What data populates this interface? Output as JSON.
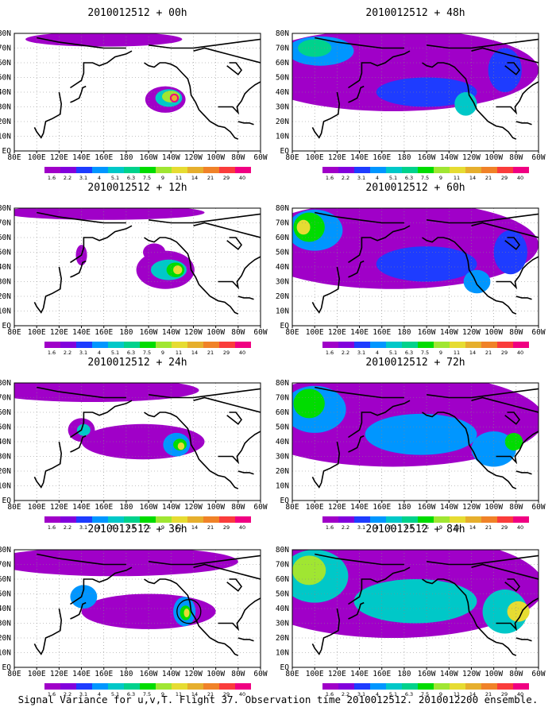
{
  "figure": {
    "caption": "Signal Variance for u,v,T. Flight 37. Observation time 2010012512. 2010012200 ensemble."
  },
  "chart_data": {
    "type": "heatmap",
    "x_ticks": [
      "80E",
      "100E",
      "120E",
      "140E",
      "160E",
      "180",
      "160W",
      "140W",
      "120W",
      "100W",
      "80W",
      "60W"
    ],
    "y_ticks": [
      "EQ",
      "10N",
      "20N",
      "30N",
      "40N",
      "50N",
      "60N",
      "70N",
      "80N"
    ],
    "colorbar": {
      "labels": [
        "1.6",
        "2.2",
        "3.1",
        "4",
        "5.1",
        "6.3",
        "7.5",
        "9",
        "11",
        "14",
        "21",
        "29",
        "40"
      ],
      "colors": [
        "#a000c8",
        "#8200dc",
        "#1e3cff",
        "#0096ff",
        "#00c8c8",
        "#00d28c",
        "#00dc00",
        "#a0e632",
        "#e6dc32",
        "#e6af2d",
        "#f08228",
        "#fa3c3c",
        "#f00082"
      ]
    },
    "land_color": "#000000",
    "grid": "dotted",
    "panels": [
      {
        "title": "2010012512 + 00h",
        "blobs": [
          {
            "lon": 215,
            "lat": 35,
            "rx": 18,
            "ry": 9,
            "level": 0
          },
          {
            "lon": 218,
            "lat": 36,
            "rx": 12,
            "ry": 6,
            "level": 4
          },
          {
            "lon": 220,
            "lat": 37,
            "rx": 8,
            "ry": 4,
            "level": 7
          },
          {
            "lon": 223,
            "lat": 36,
            "rx": 4,
            "ry": 3,
            "level": 12
          },
          {
            "lon": 223,
            "lat": 36,
            "rx": 2.5,
            "ry": 2,
            "level": 9
          },
          {
            "lon": 160,
            "lat": 76,
            "rx": 70,
            "ry": 5,
            "level": 0
          }
        ]
      },
      {
        "title": "2010012512 + 12h",
        "blobs": [
          {
            "lon": 160,
            "lat": 77,
            "rx": 90,
            "ry": 5,
            "level": 0
          },
          {
            "lon": 215,
            "lat": 38,
            "rx": 26,
            "ry": 13,
            "level": 0
          },
          {
            "lon": 205,
            "lat": 50,
            "rx": 10,
            "ry": 6,
            "level": 0
          },
          {
            "lon": 218,
            "lat": 38,
            "rx": 16,
            "ry": 7,
            "level": 4
          },
          {
            "lon": 224,
            "lat": 38,
            "rx": 8,
            "ry": 5,
            "level": 6
          },
          {
            "lon": 226,
            "lat": 38,
            "rx": 4,
            "ry": 3,
            "level": 8
          },
          {
            "lon": 140,
            "lat": 48,
            "rx": 5,
            "ry": 7,
            "level": 0
          }
        ]
      },
      {
        "title": "2010012512 + 24h",
        "blobs": [
          {
            "lon": 150,
            "lat": 75,
            "rx": 95,
            "ry": 8,
            "level": 0
          },
          {
            "lon": 195,
            "lat": 40,
            "rx": 55,
            "ry": 12,
            "level": 0
          },
          {
            "lon": 140,
            "lat": 48,
            "rx": 12,
            "ry": 8,
            "level": 0
          },
          {
            "lon": 142,
            "lat": 48,
            "rx": 6,
            "ry": 4,
            "level": 4
          },
          {
            "lon": 225,
            "lat": 38,
            "rx": 12,
            "ry": 8,
            "level": 3
          },
          {
            "lon": 228,
            "lat": 38,
            "rx": 6,
            "ry": 4,
            "level": 6
          },
          {
            "lon": 229,
            "lat": 37,
            "rx": 3,
            "ry": 2.5,
            "level": 8
          }
        ]
      },
      {
        "title": "2010012512 + 36h",
        "blobs": [
          {
            "lon": 170,
            "lat": 72,
            "rx": 110,
            "ry": 10,
            "level": 0
          },
          {
            "lon": 200,
            "lat": 38,
            "rx": 60,
            "ry": 12,
            "level": 0
          },
          {
            "lon": 142,
            "lat": 48,
            "rx": 12,
            "ry": 8,
            "level": 3
          },
          {
            "lon": 232,
            "lat": 38,
            "rx": 10,
            "ry": 10,
            "level": 3
          },
          {
            "lon": 233,
            "lat": 37,
            "rx": 5,
            "ry": 5,
            "level": 6
          },
          {
            "lon": 234,
            "lat": 37,
            "rx": 2.5,
            "ry": 3,
            "level": 8
          }
        ]
      },
      {
        "title": "2010012512 + 48h",
        "blobs": [
          {
            "lon": 170,
            "lat": 55,
            "rx": 130,
            "ry": 28,
            "level": 0
          },
          {
            "lon": 105,
            "lat": 68,
            "rx": 30,
            "ry": 10,
            "level": 3
          },
          {
            "lon": 100,
            "lat": 70,
            "rx": 15,
            "ry": 6,
            "level": 5
          },
          {
            "lon": 200,
            "lat": 40,
            "rx": 45,
            "ry": 10,
            "level": 2
          },
          {
            "lon": 235,
            "lat": 32,
            "rx": 10,
            "ry": 8,
            "level": 4
          },
          {
            "lon": 270,
            "lat": 55,
            "rx": 15,
            "ry": 15,
            "level": 2
          }
        ]
      },
      {
        "title": "2010012512 + 60h",
        "blobs": [
          {
            "lon": 170,
            "lat": 55,
            "rx": 130,
            "ry": 30,
            "level": 0
          },
          {
            "lon": 100,
            "lat": 65,
            "rx": 25,
            "ry": 14,
            "level": 3
          },
          {
            "lon": 95,
            "lat": 67,
            "rx": 14,
            "ry": 10,
            "level": 6
          },
          {
            "lon": 90,
            "lat": 67,
            "rx": 6,
            "ry": 5,
            "level": 8
          },
          {
            "lon": 200,
            "lat": 42,
            "rx": 45,
            "ry": 12,
            "level": 2
          },
          {
            "lon": 245,
            "lat": 30,
            "rx": 12,
            "ry": 8,
            "level": 3
          },
          {
            "lon": 275,
            "lat": 50,
            "rx": 15,
            "ry": 15,
            "level": 2
          }
        ]
      },
      {
        "title": "2010012512 + 72h",
        "blobs": [
          {
            "lon": 170,
            "lat": 55,
            "rx": 135,
            "ry": 32,
            "level": 0
          },
          {
            "lon": 100,
            "lat": 62,
            "rx": 28,
            "ry": 16,
            "level": 3
          },
          {
            "lon": 95,
            "lat": 66,
            "rx": 14,
            "ry": 10,
            "level": 6
          },
          {
            "lon": 195,
            "lat": 45,
            "rx": 50,
            "ry": 14,
            "level": 3
          },
          {
            "lon": 260,
            "lat": 35,
            "rx": 20,
            "ry": 12,
            "level": 3
          },
          {
            "lon": 278,
            "lat": 40,
            "rx": 8,
            "ry": 6,
            "level": 6
          }
        ]
      },
      {
        "title": "2010012512 + 84h",
        "blobs": [
          {
            "lon": 170,
            "lat": 55,
            "rx": 135,
            "ry": 35,
            "level": 0
          },
          {
            "lon": 100,
            "lat": 62,
            "rx": 30,
            "ry": 18,
            "level": 4
          },
          {
            "lon": 95,
            "lat": 66,
            "rx": 15,
            "ry": 10,
            "level": 7
          },
          {
            "lon": 190,
            "lat": 45,
            "rx": 55,
            "ry": 15,
            "level": 4
          },
          {
            "lon": 270,
            "lat": 38,
            "rx": 20,
            "ry": 15,
            "level": 4
          },
          {
            "lon": 282,
            "lat": 38,
            "rx": 10,
            "ry": 7,
            "level": 8
          }
        ]
      }
    ]
  }
}
